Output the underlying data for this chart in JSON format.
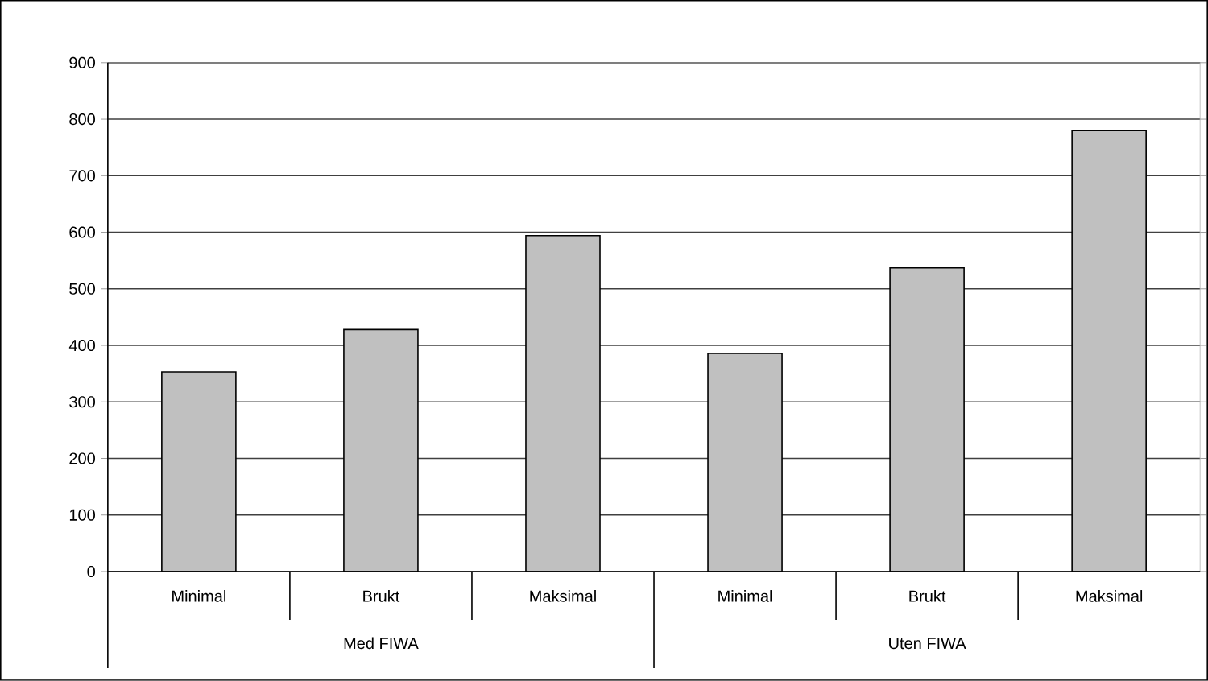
{
  "chart_data": {
    "type": "bar",
    "categories": [
      "Minimal",
      "Brukt",
      "Maksimal",
      "Minimal",
      "Brukt",
      "Maksimal"
    ],
    "values": [
      353,
      428,
      594,
      386,
      537,
      780
    ],
    "color": "#c0c0c0",
    "ylim": [
      0,
      900
    ],
    "yticks": [
      0,
      100,
      200,
      300,
      400,
      500,
      600,
      700,
      800,
      900
    ],
    "grid": "y",
    "annotations": [
      "Med FIWA",
      "Uten FIWA"
    ]
  }
}
